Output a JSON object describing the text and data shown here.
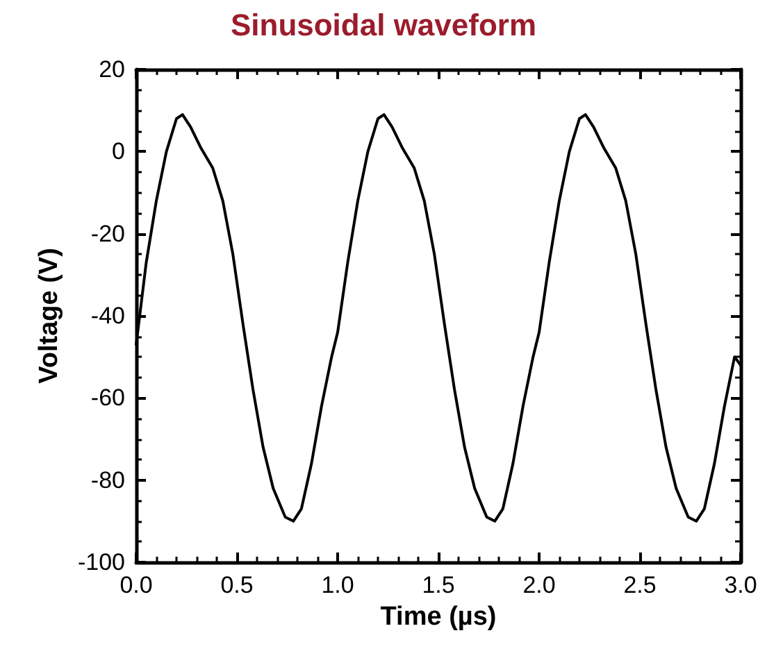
{
  "chart_data": {
    "type": "line",
    "title": "Sinusoidal waveform",
    "xlabel": "Time (µs)",
    "ylabel": "Voltage (V)",
    "x": [
      0,
      0.05,
      0.1,
      0.15,
      0.2,
      0.23,
      0.27,
      0.32,
      0.38,
      0.43,
      0.48,
      0.53,
      0.58,
      0.63,
      0.68,
      0.74,
      0.78,
      0.82,
      0.87,
      0.92,
      0.97,
      1,
      1.05,
      1.1,
      1.15,
      1.2,
      1.23,
      1.27,
      1.32,
      1.38,
      1.43,
      1.48,
      1.53,
      1.58,
      1.63,
      1.68,
      1.74,
      1.78,
      1.82,
      1.87,
      1.92,
      1.97,
      2,
      2.05,
      2.1,
      2.15,
      2.2,
      2.23,
      2.27,
      2.32,
      2.38,
      2.43,
      2.48,
      2.53,
      2.58,
      2.63,
      2.68,
      2.74,
      2.78,
      2.82,
      2.87,
      2.92,
      2.97,
      3
    ],
    "series": [
      {
        "color": "#000000",
        "values": [
          -47,
          -27,
          -12,
          0,
          8,
          9,
          6,
          1,
          -4,
          -12,
          -25,
          -42,
          -58,
          -72,
          -82,
          -89,
          -90,
          -87,
          -76,
          -62,
          -50,
          -44,
          -27,
          -12,
          0,
          8,
          9,
          6,
          1,
          -4,
          -12,
          -25,
          -42,
          -58,
          -72,
          -82,
          -89,
          -90,
          -87,
          -76,
          -62,
          -50,
          -44,
          -27,
          -12,
          0,
          8,
          9,
          6,
          1,
          -4,
          -12,
          -25,
          -42,
          -58,
          -72,
          -82,
          -89,
          -90,
          -87,
          -76,
          -62,
          -50,
          -52
        ]
      }
    ],
    "xlim": [
      0,
      3
    ],
    "xticks": [
      {
        "value": 0,
        "label": "0.0"
      },
      {
        "value": 0.5,
        "label": "0.5"
      },
      {
        "value": 1,
        "label": "1.0"
      },
      {
        "value": 1.5,
        "label": "1.5"
      },
      {
        "value": 2,
        "label": "2.0"
      },
      {
        "value": 2.5,
        "label": "2.5"
      },
      {
        "value": 3,
        "label": "3.0"
      }
    ],
    "ylim": [
      -100,
      20
    ],
    "yticks": [
      -100,
      -80,
      -60,
      -40,
      -20,
      0,
      20
    ],
    "marker": "none",
    "line_style": "solid"
  }
}
